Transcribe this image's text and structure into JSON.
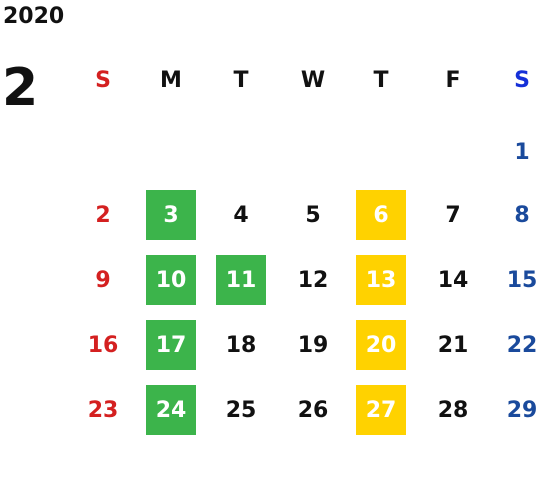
{
  "calendar": {
    "year": "2020",
    "month": "2",
    "weekdays": [
      "S",
      "M",
      "T",
      "W",
      "T",
      "F",
      "S"
    ],
    "weeks": [
      [
        null,
        null,
        null,
        null,
        null,
        null,
        {
          "day": "1"
        }
      ],
      [
        {
          "day": "2"
        },
        {
          "day": "3",
          "highlight": "green"
        },
        {
          "day": "4"
        },
        {
          "day": "5"
        },
        {
          "day": "6",
          "highlight": "yellow"
        },
        {
          "day": "7"
        },
        {
          "day": "8"
        }
      ],
      [
        {
          "day": "9"
        },
        {
          "day": "10",
          "highlight": "green"
        },
        {
          "day": "11",
          "highlight": "green"
        },
        {
          "day": "12"
        },
        {
          "day": "13",
          "highlight": "yellow"
        },
        {
          "day": "14"
        },
        {
          "day": "15"
        }
      ],
      [
        {
          "day": "16"
        },
        {
          "day": "17",
          "highlight": "green"
        },
        {
          "day": "18"
        },
        {
          "day": "19"
        },
        {
          "day": "20",
          "highlight": "yellow"
        },
        {
          "day": "21"
        },
        {
          "day": "22"
        }
      ],
      [
        {
          "day": "23"
        },
        {
          "day": "24",
          "highlight": "green"
        },
        {
          "day": "25"
        },
        {
          "day": "26"
        },
        {
          "day": "27",
          "highlight": "yellow"
        },
        {
          "day": "28"
        },
        {
          "day": "29"
        }
      ]
    ],
    "colors": {
      "sunday": "#d42020",
      "saturday": "#1a4a9c",
      "green_highlight": "#3cb44b",
      "yellow_highlight": "#ffd200"
    }
  }
}
